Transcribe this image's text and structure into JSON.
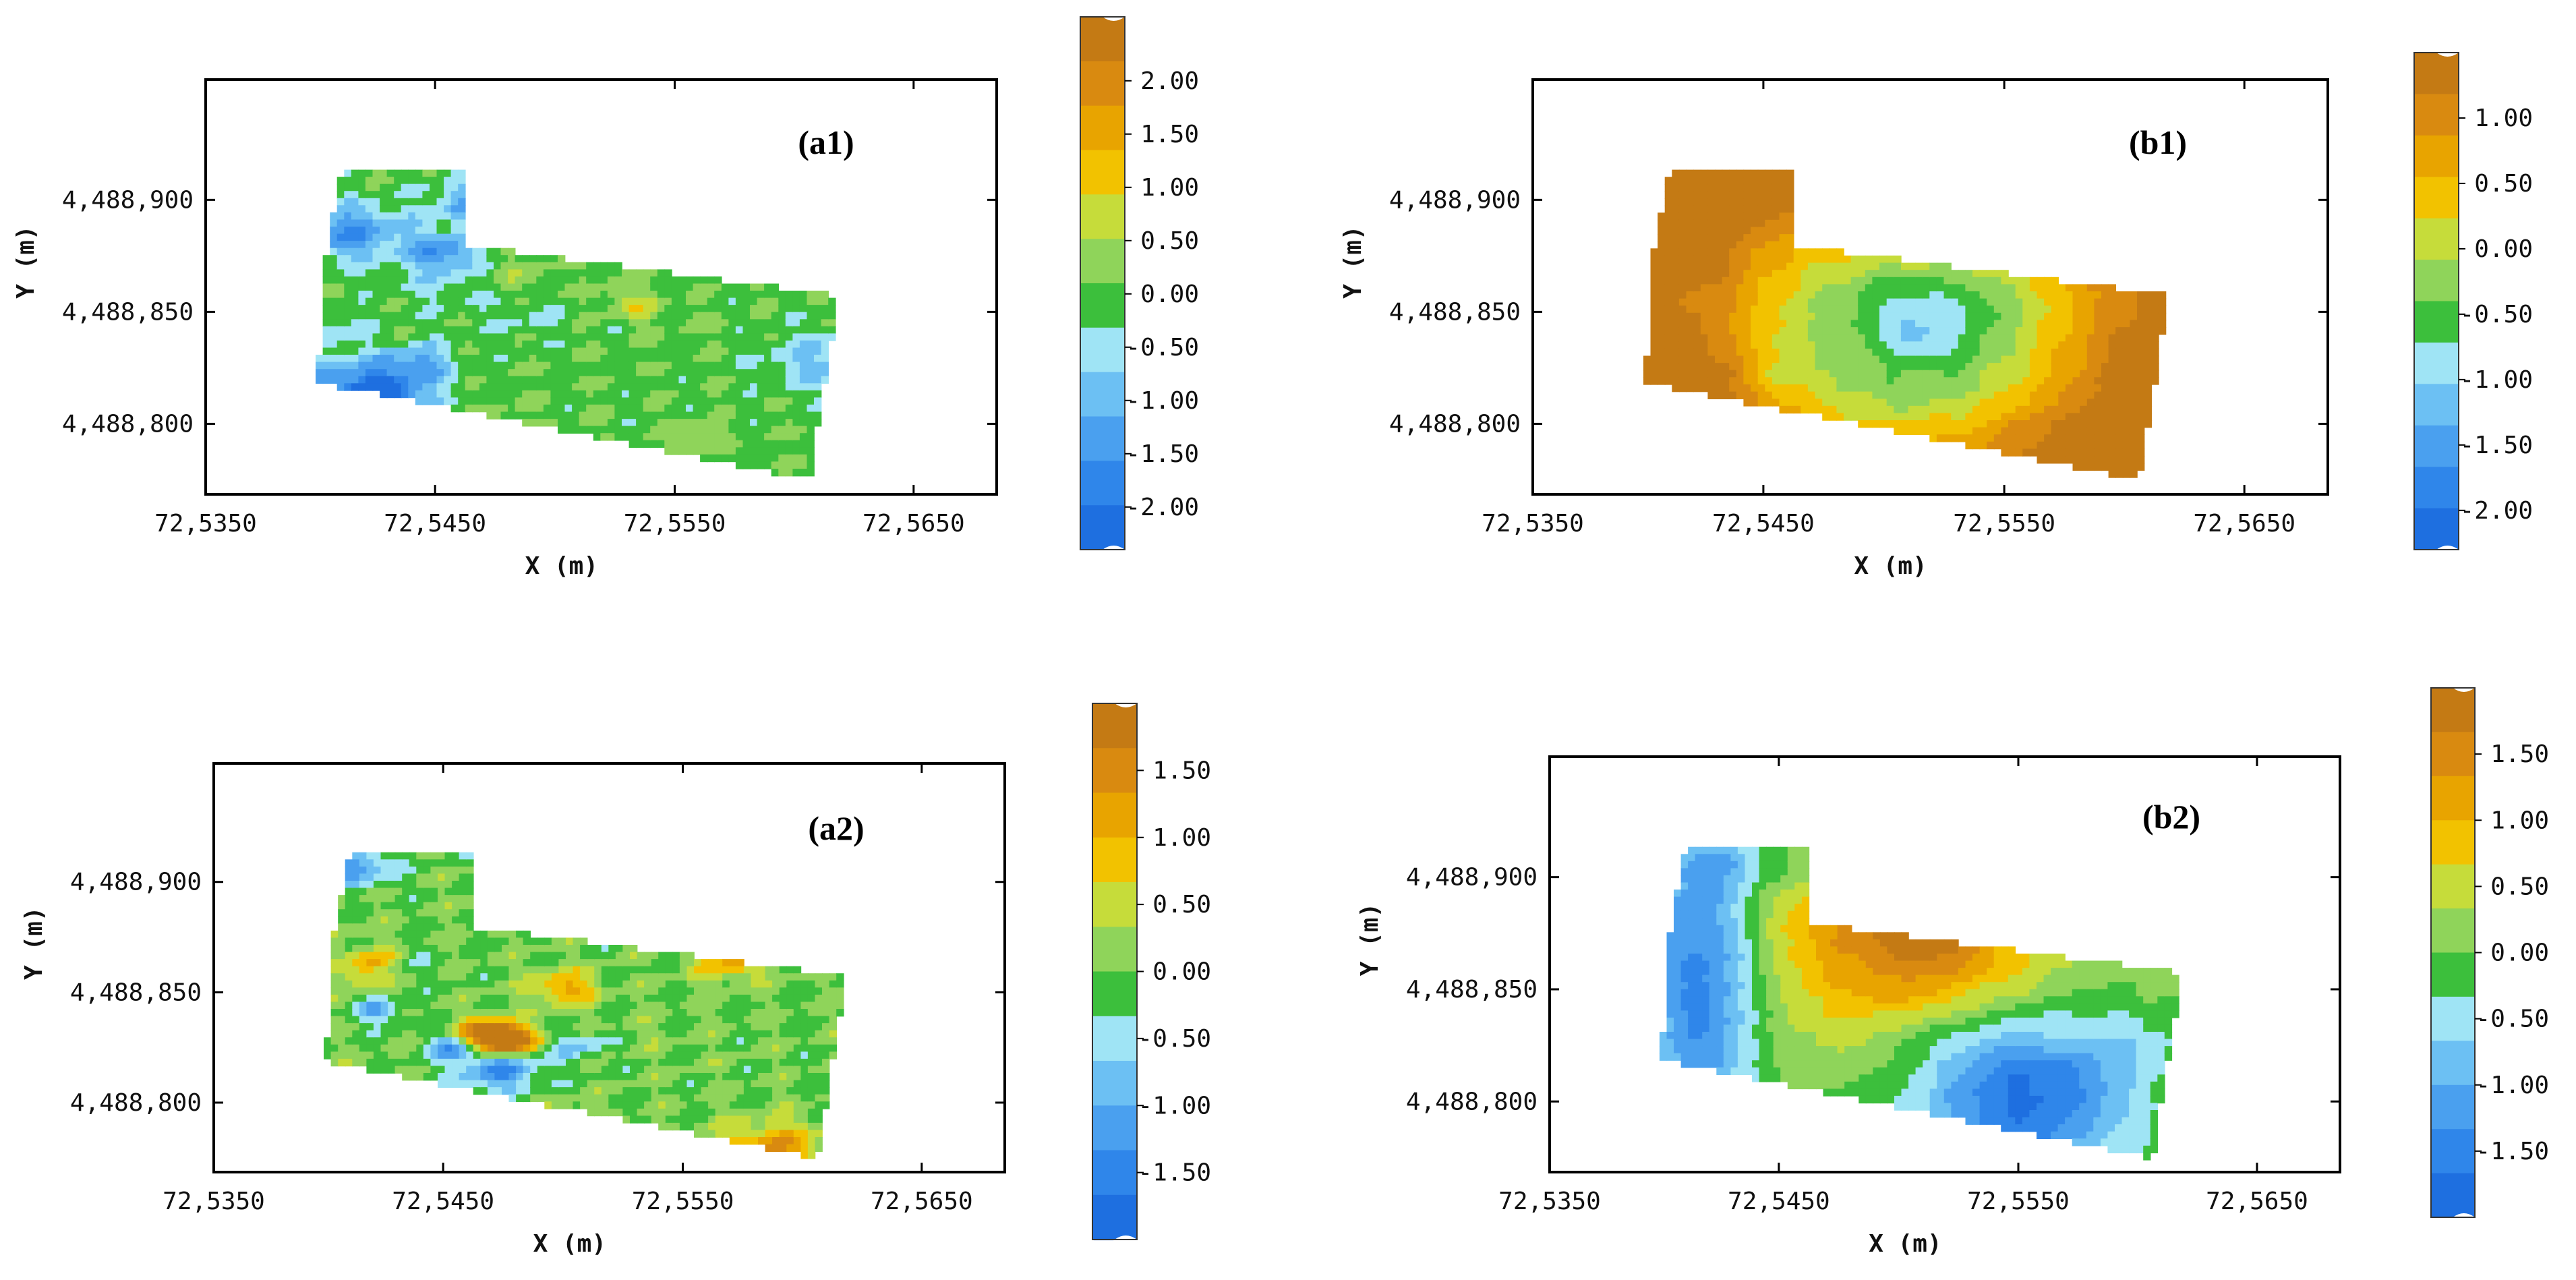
{
  "colors": {
    "levels": [
      "#1e6fe0",
      "#2f86ea",
      "#4aa0ef",
      "#6cc0f3",
      "#9fe4f5",
      "#3cbf3c",
      "#8fd45a",
      "#c6dc3a",
      "#f2c200",
      "#e8a400",
      "#d98a10",
      "#c47a14"
    ]
  },
  "chart_data": [
    {
      "type": "heatmap",
      "panel_label": "(a1)",
      "xlabel": "X (m)",
      "ylabel": "Y (m)",
      "x_ticks": [
        "72,5350",
        "72,5450",
        "72,5550",
        "72,5650"
      ],
      "y_ticks": [
        "4,488,900",
        "4,488,850",
        "4,488,800"
      ],
      "colorbar_ticks": [
        "2.00",
        "1.50",
        "1.00",
        "0.50",
        "0.00",
        "-0.50",
        "-1.00",
        "-1.50",
        "-2.00"
      ],
      "colorbar_range": [
        -2.4,
        2.6
      ],
      "pattern": "patchy",
      "seed": 11
    },
    {
      "type": "heatmap",
      "panel_label": "(b1)",
      "xlabel": "X (m)",
      "ylabel": "Y (m)",
      "x_ticks": [
        "72,5350",
        "72,5450",
        "72,5550",
        "72,5650"
      ],
      "y_ticks": [
        "4,488,900",
        "4,488,850",
        "4,488,800"
      ],
      "colorbar_ticks": [
        "1.00",
        "0.50",
        "0.00",
        "-0.50",
        "-1.00",
        "-1.50",
        "-2.00"
      ],
      "colorbar_range": [
        -2.3,
        1.5
      ],
      "pattern": "bowl",
      "seed": 23
    },
    {
      "type": "heatmap",
      "panel_label": "(a2)",
      "xlabel": "X (m)",
      "ylabel": "Y (m)",
      "x_ticks": [
        "72,5350",
        "72,5450",
        "72,5550",
        "72,5650"
      ],
      "y_ticks": [
        "4,488,900",
        "4,488,850",
        "4,488,800"
      ],
      "colorbar_ticks": [
        "1.50",
        "1.00",
        "0.50",
        "0.00",
        "-0.50",
        "-1.00",
        "-1.50"
      ],
      "colorbar_range": [
        -2.0,
        2.0
      ],
      "pattern": "patchy",
      "seed": 37
    },
    {
      "type": "heatmap",
      "panel_label": "(b2)",
      "xlabel": "X (m)",
      "ylabel": "Y (m)",
      "x_ticks": [
        "72,5350",
        "72,5450",
        "72,5550",
        "72,5650"
      ],
      "y_ticks": [
        "4,488,900",
        "4,488,850",
        "4,488,800"
      ],
      "colorbar_ticks": [
        "1.50",
        "1.00",
        "0.50",
        "0.00",
        "-0.50",
        "-1.00",
        "-1.50"
      ],
      "colorbar_range": [
        -2.0,
        2.0
      ],
      "pattern": "dipole",
      "seed": 51
    }
  ]
}
